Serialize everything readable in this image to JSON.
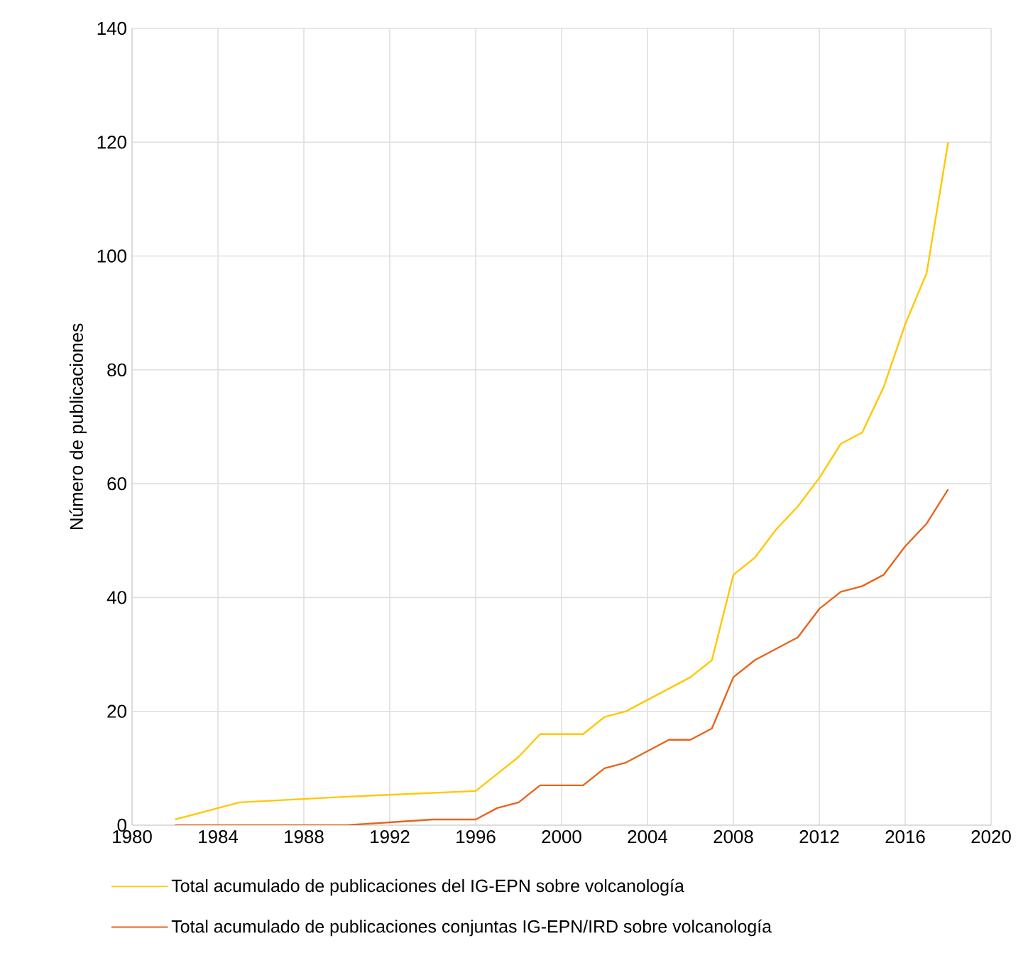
{
  "chart_data": {
    "type": "line",
    "ylabel": "Número de publicaciones",
    "xlim": [
      1980,
      2020
    ],
    "xticks": [
      1980,
      1984,
      1988,
      1992,
      1996,
      2000,
      2004,
      2008,
      2012,
      2016,
      2020
    ],
    "ylim": [
      0,
      140
    ],
    "yticks": [
      0,
      20,
      40,
      60,
      80,
      100,
      120,
      140
    ],
    "grid": true,
    "legend": "bottom",
    "marker": "none",
    "line_style": "solid",
    "series": [
      {
        "name": "Total acumulado de publicaciones del IG-EPN sobre volcanología",
        "color": "#ffc800",
        "x": [
          1982,
          1985,
          1990,
          1996,
          1997,
          1998,
          1999,
          2000,
          2001,
          2002,
          2003,
          2004,
          2005,
          2006,
          2007,
          2008,
          2009,
          2010,
          2011,
          2012,
          2013,
          2014,
          2015,
          2016,
          2017,
          2018
        ],
        "values": [
          1,
          4,
          5,
          6,
          9,
          12,
          16,
          16,
          16,
          19,
          20,
          22,
          24,
          26,
          29,
          44,
          47,
          52,
          56,
          61,
          67,
          69,
          77,
          88,
          97,
          120
        ]
      },
      {
        "name": "Total acumulado de publicaciones conjuntas IG-EPN/IRD sobre volcanología",
        "color": "#e8641b",
        "x": [
          1982,
          1990,
          1992,
          1994,
          1996,
          1997,
          1998,
          1999,
          2000,
          2001,
          2002,
          2003,
          2004,
          2005,
          2006,
          2007,
          2008,
          2009,
          2010,
          2011,
          2012,
          2013,
          2014,
          2015,
          2016,
          2017,
          2018
        ],
        "values": [
          0,
          0,
          0.5,
          1,
          1,
          3,
          4,
          7,
          7,
          7,
          10,
          11,
          13,
          15,
          15,
          17,
          26,
          29,
          31,
          33,
          38,
          41,
          42,
          44,
          49,
          53,
          59
        ]
      }
    ]
  }
}
